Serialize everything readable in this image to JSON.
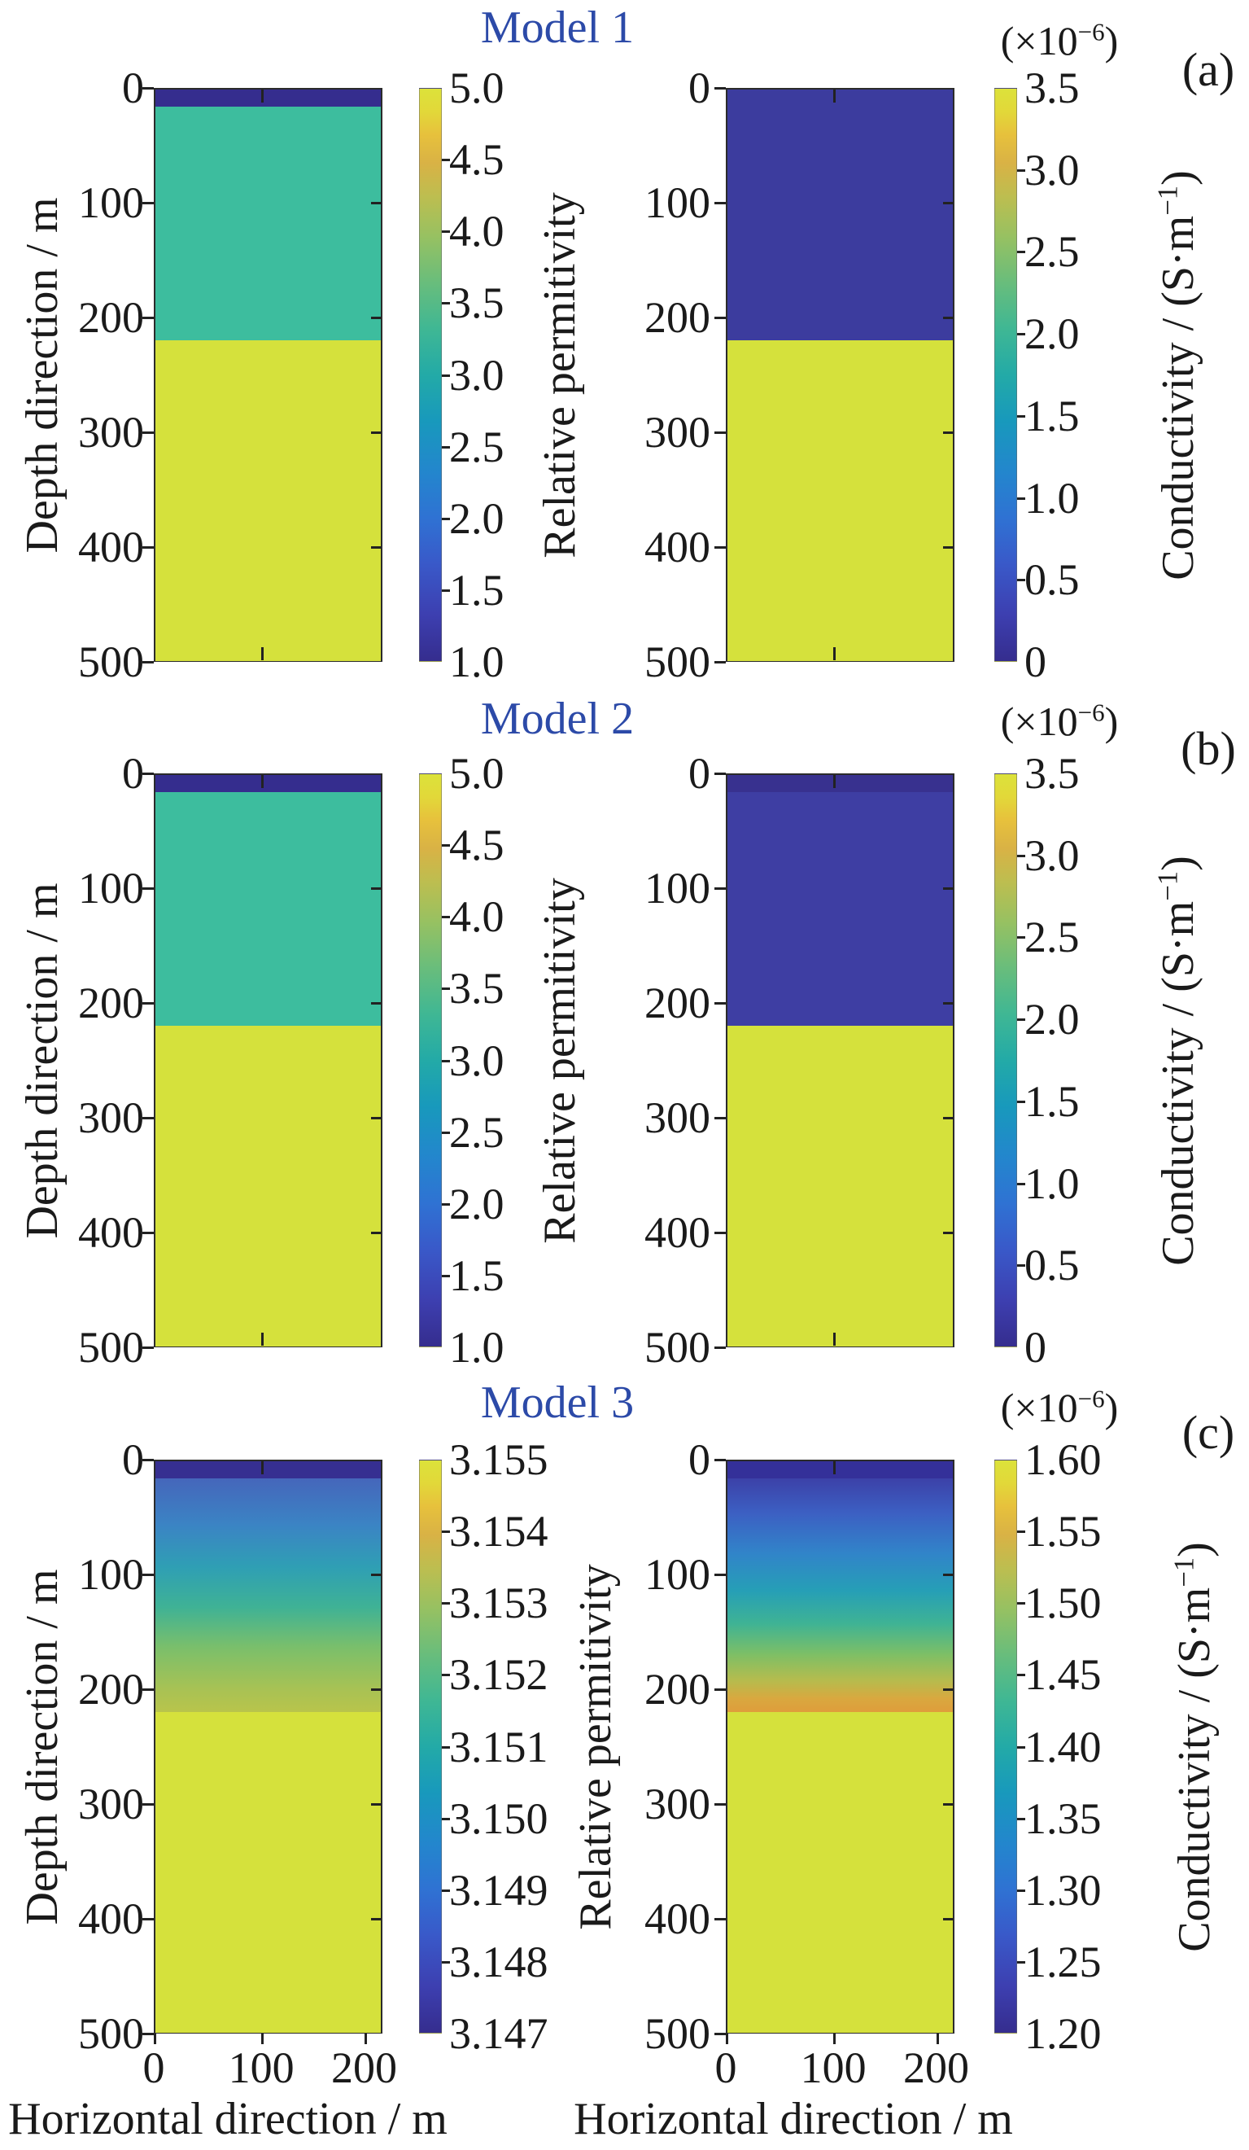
{
  "figure": {
    "title_color": "#2c4aa8",
    "text_color": "#1a1a1a",
    "background": "#ffffff",
    "axes": {
      "ylabel": "Depth direction / m",
      "yticks": [
        "0",
        "100",
        "200",
        "300",
        "400",
        "500"
      ],
      "xlabel": "Horizontal direction / m",
      "xticks": [
        "0",
        "100",
        "200"
      ]
    },
    "colorbar_gradient": [
      {
        "p": 0.0,
        "c": "#352d8e"
      },
      {
        "p": 0.08,
        "c": "#3d3fb0"
      },
      {
        "p": 0.17,
        "c": "#3959c9"
      },
      {
        "p": 0.25,
        "c": "#2f72d3"
      },
      {
        "p": 0.33,
        "c": "#2386cd"
      },
      {
        "p": 0.42,
        "c": "#1899bc"
      },
      {
        "p": 0.5,
        "c": "#23aaa7"
      },
      {
        "p": 0.58,
        "c": "#3fb794"
      },
      {
        "p": 0.66,
        "c": "#68bd7c"
      },
      {
        "p": 0.74,
        "c": "#96c162"
      },
      {
        "p": 0.81,
        "c": "#bcbe50"
      },
      {
        "p": 0.87,
        "c": "#d9b245"
      },
      {
        "p": 0.92,
        "c": "#e7c13c"
      },
      {
        "p": 0.96,
        "c": "#e2d839"
      },
      {
        "p": 1.0,
        "c": "#dce23a"
      }
    ],
    "panels": [
      {
        "key": "a",
        "title": "Model 1",
        "letter": "(a)",
        "left": {
          "name": "model1-relative-permittivity",
          "layers": [
            {
              "from": 0.0,
              "to": 0.03,
              "color": "#352d8e"
            },
            {
              "from": 0.03,
              "to": 0.44,
              "color": "#3dbd9e"
            },
            {
              "from": 0.44,
              "to": 1.0,
              "color": "#d5e13c"
            }
          ],
          "cb_ticks": [
            "5.0",
            "4.5",
            "4.0",
            "3.5",
            "3.0",
            "2.5",
            "2.0",
            "1.5",
            "1.0"
          ],
          "cb_label": {
            "text": "Relative permitivity",
            "sup": "",
            "close": ""
          },
          "scale_note": null
        },
        "right": {
          "name": "model1-conductivity",
          "layers": [
            {
              "from": 0.0,
              "to": 0.44,
              "color": "#3c3c9e"
            },
            {
              "from": 0.44,
              "to": 1.0,
              "color": "#d5e13c"
            }
          ],
          "cb_ticks": [
            "3.5",
            "3.0",
            "2.5",
            "2.0",
            "1.5",
            "1.0",
            "0.5",
            "0"
          ],
          "cb_label": {
            "text": "Conductivity / (S·m",
            "sup": "−1",
            "close": ")"
          },
          "scale_note": {
            "text": "(×10",
            "sup": "−6",
            "close": ")"
          }
        }
      },
      {
        "key": "b",
        "title": "Model 2",
        "letter": "(b)",
        "left": {
          "name": "model2-relative-permittivity",
          "layers": [
            {
              "from": 0.0,
              "to": 0.03,
              "color": "#352d8e"
            },
            {
              "from": 0.03,
              "to": 0.44,
              "color": "#3dbd9e"
            },
            {
              "from": 0.44,
              "to": 1.0,
              "color": "#d5e13c"
            }
          ],
          "cb_ticks": [
            "5.0",
            "4.5",
            "4.0",
            "3.5",
            "3.0",
            "2.5",
            "2.0",
            "1.5",
            "1.0"
          ],
          "cb_label": {
            "text": "Relative permitivity",
            "sup": "",
            "close": ""
          },
          "scale_note": null
        },
        "right": {
          "name": "model2-conductivity",
          "layers": [
            {
              "from": 0.0,
              "to": 0.03,
              "color": "#38318f"
            },
            {
              "from": 0.03,
              "to": 0.44,
              "color": "#3e3ea3"
            },
            {
              "from": 0.44,
              "to": 1.0,
              "color": "#d5e13c"
            }
          ],
          "cb_ticks": [
            "3.5",
            "3.0",
            "2.5",
            "2.0",
            "1.5",
            "1.0",
            "0.5",
            "0"
          ],
          "cb_label": {
            "text": "Conductivity / (S·m",
            "sup": "−1",
            "close": ")"
          },
          "scale_note": {
            "text": "(×10",
            "sup": "−6",
            "close": ")"
          }
        }
      },
      {
        "key": "c",
        "title": "Model 3",
        "letter": "(c)",
        "left": {
          "name": "model3-relative-permittivity",
          "layers": [
            {
              "from": 0.0,
              "to": 0.03,
              "color": "#362f91"
            },
            {
              "from": 0.03,
              "to": 0.44,
              "gradient": [
                {
                  "p": 0.0,
                  "c": "#4566bb"
                },
                {
                  "p": 0.2,
                  "c": "#3b84c4"
                },
                {
                  "p": 0.38,
                  "c": "#2f9fb4"
                },
                {
                  "p": 0.55,
                  "c": "#3fb295"
                },
                {
                  "p": 0.72,
                  "c": "#7abf6b"
                },
                {
                  "p": 0.9,
                  "c": "#a8c254"
                },
                {
                  "p": 1.0,
                  "c": "#b9c44b"
                }
              ]
            },
            {
              "from": 0.44,
              "to": 1.0,
              "color": "#d5e13c"
            }
          ],
          "cb_ticks": [
            "3.155",
            "3.154",
            "3.153",
            "3.152",
            "3.151",
            "3.150",
            "3.149",
            "3.148",
            "3.147"
          ],
          "cb_label": {
            "text": "Relative permitivity",
            "sup": "",
            "close": ""
          },
          "scale_note": null
        },
        "right": {
          "name": "model3-conductivity",
          "layers": [
            {
              "from": 0.0,
              "to": 0.03,
              "color": "#343099"
            },
            {
              "from": 0.03,
              "to": 0.44,
              "gradient": [
                {
                  "p": 0.0,
                  "c": "#3c41a8"
                },
                {
                  "p": 0.15,
                  "c": "#3c60c3"
                },
                {
                  "p": 0.32,
                  "c": "#3184c9"
                },
                {
                  "p": 0.48,
                  "c": "#269fb6"
                },
                {
                  "p": 0.62,
                  "c": "#3fb394"
                },
                {
                  "p": 0.75,
                  "c": "#7dbf66"
                },
                {
                  "p": 0.86,
                  "c": "#b5bc4e"
                },
                {
                  "p": 0.94,
                  "c": "#d9a83f"
                },
                {
                  "p": 1.0,
                  "c": "#df9c3b"
                }
              ]
            },
            {
              "from": 0.44,
              "to": 1.0,
              "color": "#d5e13c"
            }
          ],
          "cb_ticks": [
            "1.60",
            "1.55",
            "1.50",
            "1.45",
            "1.40",
            "1.35",
            "1.30",
            "1.25",
            "1.20"
          ],
          "cb_label": {
            "text": "Conductivity / (S·m",
            "sup": "−1",
            "close": ")"
          },
          "scale_note": {
            "text": "(×10",
            "sup": "−6",
            "close": ")"
          }
        }
      }
    ]
  },
  "chart_data": [
    {
      "type": "heatmap",
      "model": "Model 1",
      "quantity": "Relative permitivity",
      "x_range_m": [
        0,
        215
      ],
      "depth_range_m": [
        0,
        500
      ],
      "colorbar_range": [
        1.0,
        5.0
      ],
      "layers": [
        {
          "depth_m": [
            0,
            15
          ],
          "value": 1.0
        },
        {
          "depth_m": [
            15,
            220
          ],
          "value": 3.0
        },
        {
          "depth_m": [
            220,
            500
          ],
          "value": 5.0
        }
      ]
    },
    {
      "type": "heatmap",
      "model": "Model 1",
      "quantity": "Conductivity / (S·m⁻¹), ×10⁻⁶",
      "x_range_m": [
        0,
        215
      ],
      "depth_range_m": [
        0,
        500
      ],
      "colorbar_range": [
        0,
        3.5
      ],
      "layers": [
        {
          "depth_m": [
            0,
            220
          ],
          "value": 0.0
        },
        {
          "depth_m": [
            220,
            500
          ],
          "value": 3.5
        }
      ]
    },
    {
      "type": "heatmap",
      "model": "Model 2",
      "quantity": "Relative permitivity",
      "x_range_m": [
        0,
        215
      ],
      "depth_range_m": [
        0,
        500
      ],
      "colorbar_range": [
        1.0,
        5.0
      ],
      "layers": [
        {
          "depth_m": [
            0,
            15
          ],
          "value": 1.0
        },
        {
          "depth_m": [
            15,
            220
          ],
          "value": 3.0
        },
        {
          "depth_m": [
            220,
            500
          ],
          "value": 5.0
        }
      ]
    },
    {
      "type": "heatmap",
      "model": "Model 2",
      "quantity": "Conductivity / (S·m⁻¹), ×10⁻⁶",
      "x_range_m": [
        0,
        215
      ],
      "depth_range_m": [
        0,
        500
      ],
      "colorbar_range": [
        0,
        3.5
      ],
      "layers": [
        {
          "depth_m": [
            0,
            15
          ],
          "value": 0.0
        },
        {
          "depth_m": [
            15,
            220
          ],
          "value": 0.2
        },
        {
          "depth_m": [
            220,
            500
          ],
          "value": 3.5
        }
      ]
    },
    {
      "type": "heatmap",
      "model": "Model 3",
      "quantity": "Relative permitivity",
      "x_range_m": [
        0,
        215
      ],
      "depth_range_m": [
        0,
        500
      ],
      "colorbar_range": [
        3.147,
        3.155
      ],
      "layers": [
        {
          "depth_m": [
            0,
            15
          ],
          "value": 3.147
        },
        {
          "depth_m": [
            15,
            220
          ],
          "value_from": 3.149,
          "value_to": 3.153,
          "profile": "linear gradient"
        },
        {
          "depth_m": [
            220,
            500
          ],
          "value": 3.155
        }
      ]
    },
    {
      "type": "heatmap",
      "model": "Model 3",
      "quantity": "Conductivity / (S·m⁻¹), ×10⁻⁶",
      "x_range_m": [
        0,
        215
      ],
      "depth_range_m": [
        0,
        500
      ],
      "colorbar_range": [
        1.2,
        1.6
      ],
      "layers": [
        {
          "depth_m": [
            0,
            15
          ],
          "value": 1.2
        },
        {
          "depth_m": [
            15,
            220
          ],
          "value_from": 1.22,
          "value_to": 1.55,
          "profile": "linear gradient"
        },
        {
          "depth_m": [
            220,
            500
          ],
          "value": 1.6
        }
      ]
    }
  ]
}
